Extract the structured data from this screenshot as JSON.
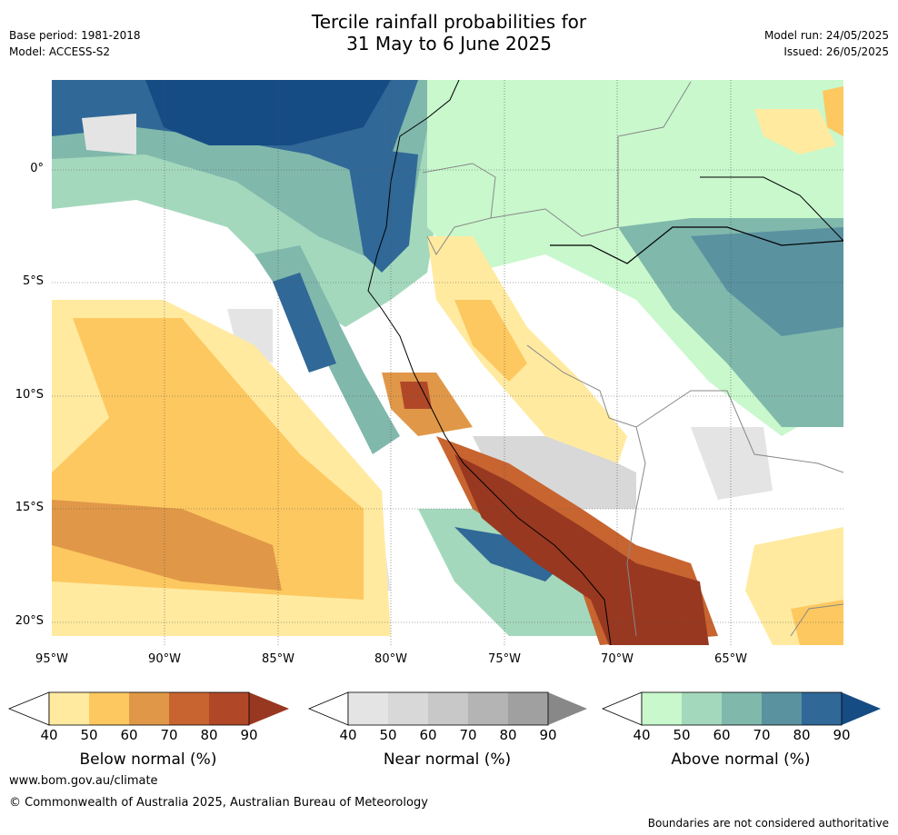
{
  "header": {
    "title_line1": "Tercile rainfall probabilities for",
    "title_line2": "31 May to 6 June 2025",
    "base_period": "Base period: 1981-2018",
    "model": "Model: ACCESS-S2",
    "model_run": "Model run: 24/05/2025",
    "issued": "Issued: 26/05/2025"
  },
  "map": {
    "lat_labels": [
      "0°",
      "5°S",
      "10°S",
      "15°S",
      "20°S"
    ],
    "lon_labels": [
      "95°W",
      "90°W",
      "85°W",
      "80°W",
      "75°W",
      "70°W",
      "65°W"
    ],
    "colors": {
      "below": [
        "#ffeaa0",
        "#fdc860",
        "#e09848",
        "#c86430",
        "#b04828",
        "#983820"
      ],
      "near": [
        "#e4e4e4",
        "#d8d8d8",
        "#c8c8c8",
        "#b4b4b4",
        "#a0a0a0",
        "#888888"
      ],
      "above": [
        "#c8f8cc",
        "#a4d8bc",
        "#80b8ac",
        "#5a92a0",
        "#306898",
        "#164c84"
      ]
    }
  },
  "colorbars": [
    {
      "label": "Below normal (%)",
      "ticks": [
        "40",
        "50",
        "60",
        "70",
        "80",
        "90"
      ]
    },
    {
      "label": "Near normal (%)",
      "ticks": [
        "40",
        "50",
        "60",
        "70",
        "80",
        "90"
      ]
    },
    {
      "label": "Above normal (%)",
      "ticks": [
        "40",
        "50",
        "60",
        "70",
        "80",
        "90"
      ]
    }
  ],
  "footer": {
    "url": "www.bom.gov.au/climate",
    "copyright": "© Commonwealth of Australia 2025, Australian Bureau of Meteorology",
    "note": "Boundaries are not considered authoritative"
  }
}
